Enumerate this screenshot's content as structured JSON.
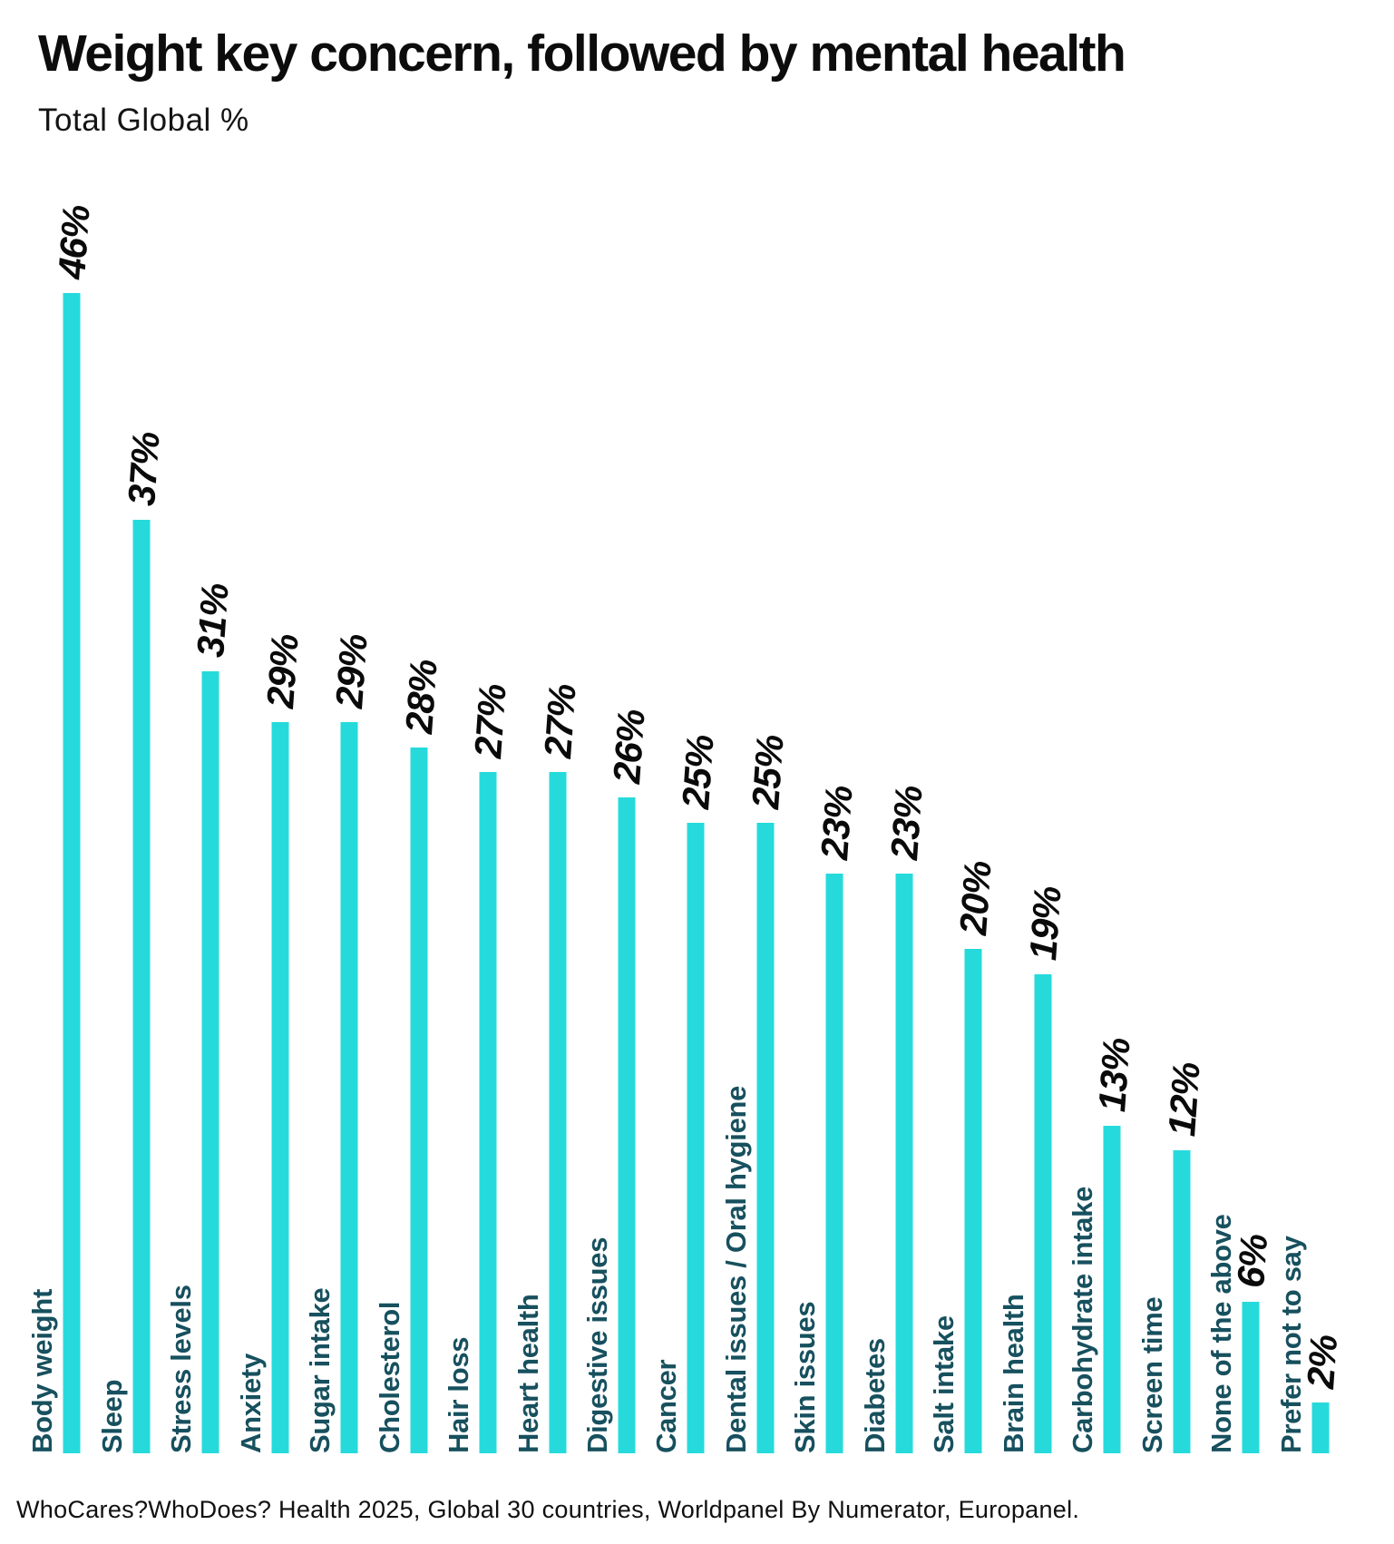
{
  "title": "Weight key concern, followed by mental health",
  "subtitle": "Total Global %",
  "source": "WhoCares?WhoDoes? Health 2025, Global 30 countries, Worldpanel By Numerator, Europanel.",
  "colors": {
    "bar": "#26dadc",
    "category_label": "#17505e",
    "value_label": "#0a0a0a",
    "background": "#ffffff"
  },
  "chart_data": {
    "type": "bar",
    "orientation": "vertical",
    "title": "Weight key concern, followed by mental health",
    "subtitle": "Total Global %",
    "unit": "%",
    "ylim": [
      0,
      50
    ],
    "grid": false,
    "legend": "none",
    "value_labels": "rotated above bars",
    "category_labels": "rotated, left of bars",
    "categories": [
      "Body weight",
      "Sleep",
      "Stress levels",
      "Anxiety",
      "Sugar intake",
      "Cholesterol",
      "Hair loss",
      "Heart health",
      "Digestive issues",
      "Cancer",
      "Dental issues / Oral hygiene",
      "Skin issues",
      "Diabetes",
      "Salt intake",
      "Brain health",
      "Carbohydrate intake",
      "Screen time",
      "None of the above",
      "Prefer not to say"
    ],
    "values": [
      46,
      37,
      31,
      29,
      29,
      28,
      27,
      27,
      26,
      25,
      25,
      23,
      23,
      20,
      19,
      13,
      12,
      6,
      2
    ]
  }
}
